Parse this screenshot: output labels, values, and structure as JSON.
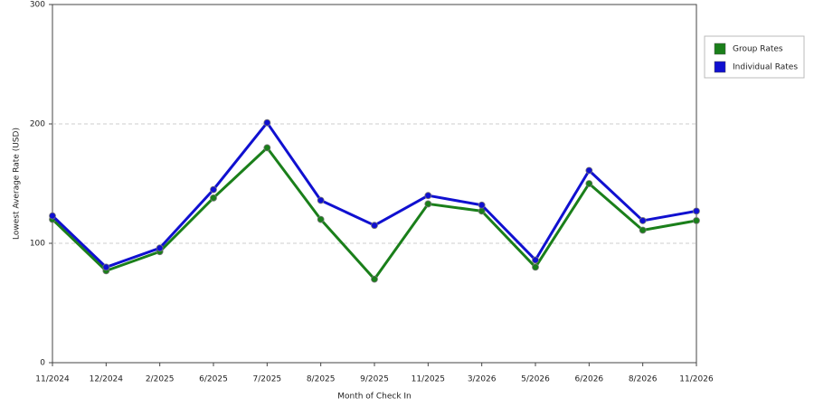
{
  "chart_data": {
    "type": "line",
    "x_label": "Month of Check In",
    "y_label": "Lowest Average Rate (USD)",
    "categories": [
      "11/2024",
      "12/2024",
      "2/2025",
      "6/2025",
      "7/2025",
      "8/2025",
      "9/2025",
      "11/2025",
      "3/2026",
      "5/2026",
      "6/2026",
      "8/2026",
      "11/2026"
    ],
    "series": [
      {
        "name": "Group Rates",
        "color": "#1a7f1a",
        "values": [
          120,
          77,
          93,
          138,
          180,
          120,
          70,
          133,
          127,
          80,
          150,
          111,
          119
        ]
      },
      {
        "name": "Individual Rates",
        "color": "#1010d0",
        "values": [
          123,
          80,
          96,
          145,
          201,
          136,
          115,
          140,
          132,
          86,
          161,
          119,
          127
        ]
      }
    ],
    "ylim": [
      0,
      300
    ],
    "yticks": [
      0,
      100,
      200,
      300
    ],
    "grid": true,
    "legend": "right"
  }
}
